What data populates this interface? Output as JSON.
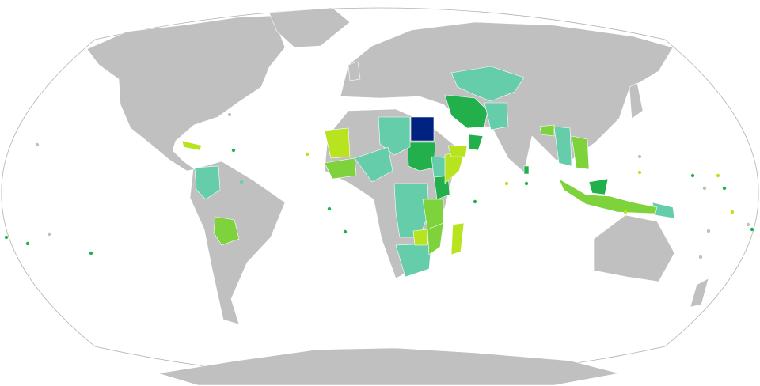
{
  "map": {
    "projection": "robinson-world",
    "colors": {
      "ocean": "#ffffff",
      "outline": "#b0b0b0",
      "no_data": "#c0c0c0",
      "highest": "#002280",
      "dark_green": "#22b04c",
      "light_green": "#7ed23b",
      "lime": "#b8e41f",
      "teal": "#66cdaa"
    },
    "regions": [
      {
        "id": "egypt",
        "category": "highest"
      },
      {
        "id": "sudan",
        "category": "dark_green"
      },
      {
        "id": "iran",
        "category": "dark_green"
      },
      {
        "id": "oman",
        "category": "dark_green"
      },
      {
        "id": "kenya",
        "category": "dark_green"
      },
      {
        "id": "malaysia",
        "category": "dark_green"
      },
      {
        "id": "sri-lanka",
        "category": "dark_green"
      },
      {
        "id": "kazakhstan-central-asia",
        "category": "teal"
      },
      {
        "id": "algeria-libya",
        "category": "teal"
      },
      {
        "id": "pakistan-afghanistan",
        "category": "teal"
      },
      {
        "id": "dr-congo-angola",
        "category": "teal"
      },
      {
        "id": "ethiopia",
        "category": "teal"
      },
      {
        "id": "south-africa",
        "category": "teal"
      },
      {
        "id": "colombia",
        "category": "teal"
      },
      {
        "id": "myanmar-thailand",
        "category": "teal"
      },
      {
        "id": "papua-new-guinea",
        "category": "teal"
      },
      {
        "id": "nigeria-chad",
        "category": "teal"
      },
      {
        "id": "mali-mauritania",
        "category": "lime"
      },
      {
        "id": "somalia",
        "category": "lime"
      },
      {
        "id": "yemen",
        "category": "lime"
      },
      {
        "id": "cuba",
        "category": "lime"
      },
      {
        "id": "zimbabwe",
        "category": "lime"
      },
      {
        "id": "madagascar",
        "category": "lime"
      },
      {
        "id": "vietnam",
        "category": "light_green"
      },
      {
        "id": "tanzania-malawi",
        "category": "light_green"
      },
      {
        "id": "mozambique",
        "category": "light_green"
      },
      {
        "id": "indonesia",
        "category": "light_green"
      },
      {
        "id": "bolivia",
        "category": "light_green"
      },
      {
        "id": "bangladesh",
        "category": "light_green"
      },
      {
        "id": "guinea-west-africa",
        "category": "light_green"
      }
    ]
  }
}
